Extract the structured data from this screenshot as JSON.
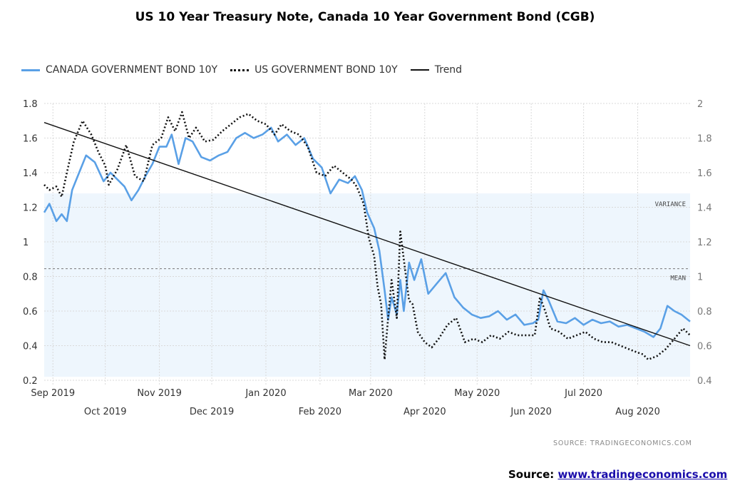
{
  "title": "US 10 Year Treasury Note, Canada 10 Year Government Bond (CGB)",
  "legend": {
    "canada": "CANADA GOVERNMENT BOND 10Y",
    "us": "US GOVERNMENT BOND 10Y",
    "trend": "Trend"
  },
  "source_small": "SOURCE:  TRADINGECONOMICS.COM",
  "source_label": "Source: ",
  "source_link": "www.tradingeconomics.com",
  "colors": {
    "canada": "#5aa0e6",
    "us": "#111111",
    "trend": "#111111",
    "band": "#eef6fd"
  },
  "chart_data": {
    "type": "line",
    "x_start": "2019-08-27",
    "x_end": "2020-08-31",
    "left_axis": {
      "ylim": [
        0.2,
        1.8
      ],
      "ticks": [
        "1.8",
        "1.6",
        "1.4",
        "1.2",
        "1",
        "0.8",
        "0.6",
        "0.4",
        "0.2"
      ]
    },
    "right_axis": {
      "ylim": [
        0.4,
        2.0
      ],
      "ticks": [
        "2",
        "1.8",
        "1.6",
        "1.4",
        "1.2",
        "1",
        "0.8",
        "0.6",
        "0.4"
      ]
    },
    "x_ticks_row1": [
      "Sep 2019",
      "Nov 2019",
      "Jan 2020",
      "Mar 2020",
      "May 2020",
      "Jul 2020"
    ],
    "x_ticks_row2": [
      "Oct 2019",
      "Dec 2019",
      "Feb 2020",
      "Apr 2020",
      "Jun 2020",
      "Aug 2020"
    ],
    "x_tick_dates_row1": [
      "2019-09-01",
      "2019-11-01",
      "2020-01-01",
      "2020-03-01",
      "2020-05-01",
      "2020-07-01"
    ],
    "x_tick_dates_row2": [
      "2019-10-01",
      "2019-12-01",
      "2020-02-01",
      "2020-04-01",
      "2020-06-01",
      "2020-08-01"
    ],
    "band": {
      "label": "VARIANCE",
      "lower": 0.22,
      "upper": 1.28
    },
    "mean": {
      "label": "MEAN",
      "value": 0.845
    },
    "grid": true,
    "legend_position": "top-left",
    "series": [
      {
        "name": "CANADA GOVERNMENT BOND 10Y",
        "axis": "left",
        "x": [
          "2019-08-27",
          "2019-08-30",
          "2019-09-03",
          "2019-09-06",
          "2019-09-09",
          "2019-09-12",
          "2019-09-16",
          "2019-09-20",
          "2019-09-25",
          "2019-09-30",
          "2019-10-04",
          "2019-10-08",
          "2019-10-12",
          "2019-10-16",
          "2019-10-20",
          "2019-10-24",
          "2019-10-28",
          "2019-11-01",
          "2019-11-05",
          "2019-11-08",
          "2019-11-12",
          "2019-11-16",
          "2019-11-20",
          "2019-11-25",
          "2019-11-30",
          "2019-12-05",
          "2019-12-10",
          "2019-12-15",
          "2019-12-20",
          "2019-12-25",
          "2019-12-30",
          "2020-01-04",
          "2020-01-08",
          "2020-01-13",
          "2020-01-18",
          "2020-01-23",
          "2020-01-28",
          "2020-02-02",
          "2020-02-07",
          "2020-02-12",
          "2020-02-17",
          "2020-02-21",
          "2020-02-25",
          "2020-02-28",
          "2020-03-03",
          "2020-03-06",
          "2020-03-09",
          "2020-03-11",
          "2020-03-13",
          "2020-03-16",
          "2020-03-18",
          "2020-03-20",
          "2020-03-23",
          "2020-03-26",
          "2020-03-30",
          "2020-04-03",
          "2020-04-08",
          "2020-04-13",
          "2020-04-18",
          "2020-04-23",
          "2020-04-28",
          "2020-05-03",
          "2020-05-08",
          "2020-05-13",
          "2020-05-18",
          "2020-05-23",
          "2020-05-28",
          "2020-06-02",
          "2020-06-05",
          "2020-06-08",
          "2020-06-11",
          "2020-06-16",
          "2020-06-21",
          "2020-06-26",
          "2020-07-01",
          "2020-07-06",
          "2020-07-11",
          "2020-07-16",
          "2020-07-21",
          "2020-07-26",
          "2020-07-31",
          "2020-08-05",
          "2020-08-10",
          "2020-08-14",
          "2020-08-18",
          "2020-08-22",
          "2020-08-26",
          "2020-08-31"
        ],
        "values": [
          1.17,
          1.22,
          1.12,
          1.16,
          1.12,
          1.3,
          1.4,
          1.5,
          1.46,
          1.35,
          1.4,
          1.36,
          1.32,
          1.24,
          1.3,
          1.38,
          1.45,
          1.55,
          1.55,
          1.62,
          1.45,
          1.6,
          1.58,
          1.49,
          1.47,
          1.5,
          1.52,
          1.6,
          1.63,
          1.6,
          1.62,
          1.66,
          1.58,
          1.62,
          1.56,
          1.6,
          1.48,
          1.43,
          1.28,
          1.36,
          1.34,
          1.38,
          1.3,
          1.17,
          1.08,
          0.95,
          0.72,
          0.55,
          0.68,
          0.58,
          0.78,
          0.6,
          0.88,
          0.78,
          0.9,
          0.7,
          0.76,
          0.82,
          0.68,
          0.62,
          0.58,
          0.56,
          0.57,
          0.6,
          0.55,
          0.58,
          0.52,
          0.53,
          0.55,
          0.72,
          0.66,
          0.54,
          0.53,
          0.56,
          0.52,
          0.55,
          0.53,
          0.54,
          0.51,
          0.52,
          0.5,
          0.48,
          0.45,
          0.5,
          0.63,
          0.6,
          0.58,
          0.54
        ]
      },
      {
        "name": "US GOVERNMENT BOND 10Y",
        "axis": "right",
        "x": [
          "2019-08-27",
          "2019-08-30",
          "2019-09-03",
          "2019-09-06",
          "2019-09-09",
          "2019-09-13",
          "2019-09-18",
          "2019-09-23",
          "2019-09-27",
          "2019-10-01",
          "2019-10-03",
          "2019-10-08",
          "2019-10-13",
          "2019-10-18",
          "2019-10-23",
          "2019-10-28",
          "2019-11-02",
          "2019-11-06",
          "2019-11-10",
          "2019-11-14",
          "2019-11-18",
          "2019-11-22",
          "2019-11-27",
          "2019-12-02",
          "2019-12-07",
          "2019-12-12",
          "2019-12-17",
          "2019-12-22",
          "2019-12-27",
          "2020-01-01",
          "2020-01-06",
          "2020-01-10",
          "2020-01-15",
          "2020-01-20",
          "2020-01-25",
          "2020-01-30",
          "2020-02-04",
          "2020-02-09",
          "2020-02-14",
          "2020-02-19",
          "2020-02-22",
          "2020-02-26",
          "2020-02-29",
          "2020-03-03",
          "2020-03-05",
          "2020-03-07",
          "2020-03-09",
          "2020-03-11",
          "2020-03-13",
          "2020-03-16",
          "2020-03-18",
          "2020-03-20",
          "2020-03-23",
          "2020-03-25",
          "2020-03-28",
          "2020-04-01",
          "2020-04-05",
          "2020-04-09",
          "2020-04-14",
          "2020-04-19",
          "2020-04-24",
          "2020-04-29",
          "2020-05-04",
          "2020-05-09",
          "2020-05-14",
          "2020-05-19",
          "2020-05-24",
          "2020-05-29",
          "2020-06-03",
          "2020-06-06",
          "2020-06-09",
          "2020-06-12",
          "2020-06-17",
          "2020-06-22",
          "2020-06-27",
          "2020-07-02",
          "2020-07-07",
          "2020-07-12",
          "2020-07-17",
          "2020-07-22",
          "2020-07-27",
          "2020-08-01",
          "2020-08-04",
          "2020-08-07",
          "2020-08-12",
          "2020-08-17",
          "2020-08-22",
          "2020-08-27",
          "2020-08-31"
        ],
        "values": [
          1.53,
          1.5,
          1.52,
          1.46,
          1.6,
          1.78,
          1.9,
          1.82,
          1.72,
          1.64,
          1.53,
          1.62,
          1.76,
          1.58,
          1.55,
          1.76,
          1.8,
          1.92,
          1.84,
          1.95,
          1.8,
          1.86,
          1.78,
          1.79,
          1.84,
          1.88,
          1.92,
          1.94,
          1.9,
          1.88,
          1.82,
          1.88,
          1.84,
          1.82,
          1.75,
          1.6,
          1.58,
          1.64,
          1.6,
          1.56,
          1.52,
          1.42,
          1.22,
          1.12,
          0.94,
          0.84,
          0.52,
          0.76,
          0.98,
          0.76,
          1.26,
          1.1,
          0.86,
          0.84,
          0.68,
          0.62,
          0.59,
          0.64,
          0.72,
          0.76,
          0.62,
          0.64,
          0.62,
          0.66,
          0.64,
          0.68,
          0.66,
          0.66,
          0.66,
          0.88,
          0.8,
          0.7,
          0.68,
          0.64,
          0.66,
          0.68,
          0.64,
          0.62,
          0.62,
          0.6,
          0.58,
          0.56,
          0.55,
          0.52,
          0.54,
          0.58,
          0.64,
          0.7,
          0.66
        ]
      },
      {
        "name": "Trend",
        "axis": "left",
        "x": [
          "2019-08-27",
          "2020-08-31"
        ],
        "values": [
          1.69,
          0.4
        ]
      }
    ]
  }
}
